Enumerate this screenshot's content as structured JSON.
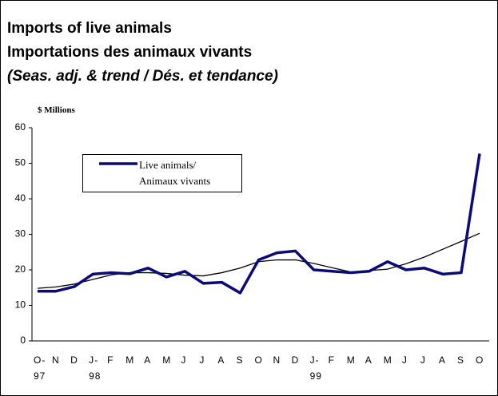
{
  "chart_data": {
    "type": "line",
    "title": "Imports of live animals",
    "subtitle": "Importations des animaux vivants",
    "note": "(Seas. adj. & trend / Dés. et tendance)",
    "y_label": "$ Millions",
    "categories": [
      "O-\n97",
      "N",
      "D",
      "J-\n98",
      "F",
      "M",
      "A",
      "M",
      "J",
      "J",
      "A",
      "S",
      "O",
      "N",
      "D",
      "J-\n99",
      "F",
      "M",
      "A",
      "M",
      "J",
      "J",
      "A",
      "S",
      "O"
    ],
    "series": [
      {
        "name": "Live animals/\nAnimaux vivants",
        "color": "#0a0a7a",
        "width": 3.5,
        "values": [
          14,
          14,
          15.3,
          18.8,
          19.2,
          18.9,
          20.5,
          18,
          19.6,
          16.2,
          16.5,
          13.5,
          22.8,
          24.8,
          25.3,
          20,
          19.6,
          19.2,
          19.6,
          22.3,
          20,
          20.5,
          18.8,
          19.2,
          52.7
        ]
      },
      {
        "color": "#000000",
        "width": 1.3,
        "values": [
          14.8,
          15.2,
          16.0,
          17.3,
          18.6,
          19.2,
          19.2,
          19.0,
          18.5,
          18.3,
          19.2,
          20.5,
          22.3,
          22.8,
          22.8,
          21.8,
          20.6,
          19.4,
          19.8,
          20.2,
          21.7,
          23.6,
          25.8,
          28.0,
          30.3
        ]
      }
    ],
    "ylim": [
      0,
      60
    ],
    "yticks": [
      0,
      10,
      20,
      30,
      40,
      50,
      60
    ],
    "grid": false
  }
}
